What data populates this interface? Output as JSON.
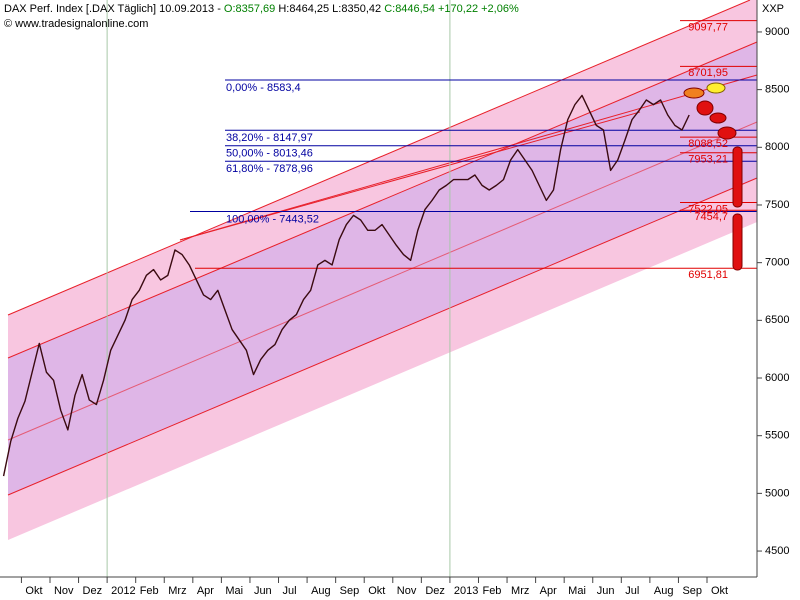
{
  "chart_data": {
    "type": "line",
    "title": "DAX Perf. Index [.DAX  Täglich] 10.09.2013 -",
    "quote_open": "O:8357,69",
    "quote_hl": "H:8464,25 L:8350,42",
    "quote_close": "C:8446,54 +170,22 +2,06%",
    "subtitle": "© www.tradesignalonline.com",
    "y_axis_label": "XXP",
    "categories": [
      null,
      null,
      null,
      "Okt",
      null,
      null,
      null,
      "Nov",
      null,
      null,
      null,
      "Dez",
      null,
      null,
      null,
      "2012",
      null,
      null,
      null,
      "Feb",
      null,
      null,
      null,
      "Mrz",
      null,
      null,
      null,
      "Apr",
      null,
      null,
      null,
      "Mai",
      null,
      null,
      null,
      "Jun",
      null,
      null,
      null,
      "Jul",
      null,
      null,
      null,
      "Aug",
      null,
      null,
      null,
      "Sep",
      null,
      null,
      null,
      "Okt",
      null,
      null,
      null,
      "Nov",
      null,
      null,
      null,
      "Dez",
      null,
      null,
      null,
      "2013",
      null,
      null,
      null,
      "Feb",
      null,
      null,
      null,
      "Mrz",
      null,
      null,
      null,
      "Apr",
      null,
      null,
      null,
      "Mai",
      null,
      null,
      null,
      "Jun",
      null,
      null,
      null,
      "Jul",
      null,
      null,
      null,
      "Aug",
      null,
      null,
      null,
      "Sep",
      null,
      null,
      null,
      "Okt",
      null,
      null,
      null,
      null,
      null,
      null
    ],
    "series": [
      {
        "name": ".DAX",
        "color": "#3a0a10",
        "values": [
          5150,
          5450,
          5650,
          5800,
          6050,
          6300,
          6050,
          5980,
          5720,
          5550,
          5850,
          6030,
          5810,
          5770,
          5980,
          6240,
          6370,
          6500,
          6680,
          6760,
          6890,
          6940,
          6850,
          6890,
          7110,
          7070,
          6980,
          6850,
          6720,
          6680,
          6760,
          6590,
          6420,
          6330,
          6240,
          6030,
          6160,
          6240,
          6290,
          6420,
          6500,
          6550,
          6680,
          6760,
          6980,
          7020,
          6980,
          7200,
          7330,
          7410,
          7370,
          7280,
          7280,
          7330,
          7240,
          7150,
          7070,
          7020,
          7280,
          7460,
          7540,
          7630,
          7670,
          7720,
          7720,
          7720,
          7760,
          7670,
          7630,
          7670,
          7720,
          7890,
          7980,
          7890,
          7800,
          7670,
          7540,
          7630,
          7980,
          8240,
          8370,
          8450,
          8320,
          8190,
          8150,
          7800,
          7890,
          8060,
          8240,
          8320,
          8410,
          8370,
          8410,
          8280,
          8190,
          8150,
          8280,
          null,
          null,
          null,
          null,
          null,
          null,
          null,
          null,
          null
        ]
      }
    ],
    "ylim": [
      4275,
      9277
    ],
    "yticks": [
      4500,
      5000,
      5500,
      6000,
      6500,
      7000,
      7500,
      8000,
      8500,
      9000
    ],
    "fib_levels": [
      {
        "value": 8583.4,
        "label": "0,00% - 8583,4"
      },
      {
        "value": 8147.97,
        "label": "38,20% - 8147,97"
      },
      {
        "value": 8013.46,
        "label": "50,00% - 8013,46"
      },
      {
        "value": 7878.96,
        "label": "61,80% - 7878,96"
      },
      {
        "value": 7443.52,
        "label": "100,00% - 7443,52"
      }
    ],
    "fib_color": "#0000a0",
    "price_levels": [
      {
        "value": 9097.77,
        "label": "9097,77"
      },
      {
        "value": 8701.95,
        "label": "8701,95"
      },
      {
        "value": 8088.52,
        "label": "8088,52"
      },
      {
        "value": 7953.21,
        "label": "7953,21"
      },
      {
        "value": 7522.05,
        "label": "7522,05"
      },
      {
        "value": 7454.7,
        "label": "7454,7"
      },
      {
        "value": 6951.81,
        "label": "6951,81"
      }
    ],
    "level_color": "#e00000"
  }
}
